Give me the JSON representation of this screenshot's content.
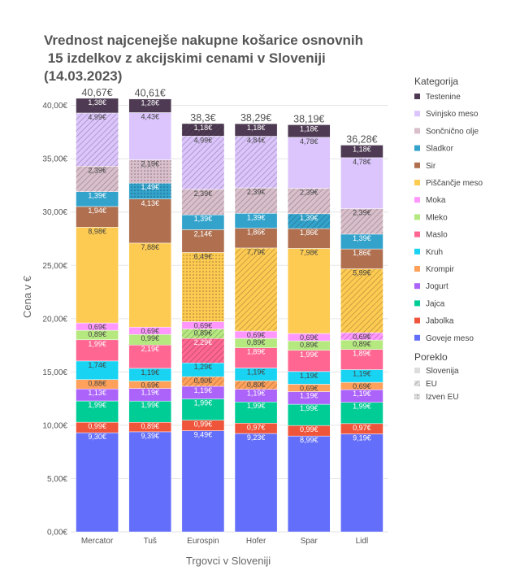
{
  "chart_data": {
    "type": "bar",
    "stacked": true,
    "title_lines": [
      "Vrednost najcenejše nakupne košarice osnovnih",
      " 15 izdelkov z akcijskimi cenami v Sloveniji",
      "(14.03.2023)"
    ],
    "xlabel": "Trgovci v Sloveniji",
    "ylabel": "Cena v €",
    "ylim": [
      0,
      41.5
    ],
    "yticks": [
      0,
      5,
      10,
      15,
      20,
      25,
      30,
      35,
      40
    ],
    "ytick_labels": [
      "0,00€",
      "5,00€",
      "10,00€",
      "15,00€",
      "20,00€",
      "25,00€",
      "30,00€",
      "35,00€",
      "40,00€"
    ],
    "grid": true,
    "categories": [
      "Mercator",
      "Tuš",
      "Eurospin",
      "Hofer",
      "Spar",
      "Lidl"
    ],
    "totals": [
      "40,67€",
      "40,61€",
      "38,3€",
      "38,29€",
      "38,19€",
      "36,28€"
    ],
    "series": [
      {
        "name": "Goveje meso",
        "color": "#636efa",
        "values": [
          9.3,
          9.39,
          9.49,
          9.23,
          8.99,
          9.19
        ],
        "labels": [
          "9,30€",
          "9,39€",
          "9,49€",
          "9,23€",
          "8,99€",
          "9,19€"
        ],
        "origin": [
          "slo",
          "slo",
          "slo",
          "slo",
          "slo",
          "slo"
        ]
      },
      {
        "name": "Jabolka",
        "color": "#ef553b",
        "values": [
          0.99,
          0.89,
          0.99,
          0.97,
          0.99,
          0.97
        ],
        "labels": [
          "0,99€",
          "0,89€",
          "0,99€",
          "0,97€",
          "0,99€",
          "0,97€"
        ],
        "origin": [
          "slo",
          "slo",
          "slo",
          "slo",
          "slo",
          "slo"
        ]
      },
      {
        "name": "Jajca",
        "color": "#00cc96",
        "values": [
          1.99,
          1.99,
          1.99,
          1.99,
          1.99,
          1.99
        ],
        "labels": [
          "1,99€",
          "1,99€",
          "1,99€",
          "1,99€",
          "1,99€",
          "1,99€"
        ],
        "origin": [
          "slo",
          "slo",
          "slo",
          "slo",
          "slo",
          "slo"
        ]
      },
      {
        "name": "Jogurt",
        "color": "#ab63fa",
        "values": [
          1.13,
          1.19,
          1.19,
          1.19,
          1.19,
          1.19
        ],
        "labels": [
          "1,13€",
          "1,19€",
          "1,19€",
          "1,19€",
          "1,19€",
          "1,19€"
        ],
        "origin": [
          "slo",
          "slo",
          "slo",
          "slo",
          "slo",
          "slo"
        ]
      },
      {
        "name": "Krompir",
        "color": "#ffa15a",
        "values": [
          0.88,
          0.69,
          0.9,
          0.8,
          0.69,
          0.69
        ],
        "labels": [
          "0,88€",
          "0,69€",
          "0,90€",
          "0,80€",
          "0,69€",
          "0,69€"
        ],
        "origin": [
          "slo",
          "slo",
          "eu",
          "eu",
          "slo",
          "slo"
        ]
      },
      {
        "name": "Kruh",
        "color": "#19d3f3",
        "values": [
          1.74,
          1.19,
          1.29,
          1.19,
          1.19,
          1.19
        ],
        "labels": [
          "1,74€",
          "1,19€",
          "1,29€",
          "1,19€",
          "1,19€",
          "1,19€"
        ],
        "origin": [
          "slo",
          "slo",
          "slo",
          "slo",
          "slo",
          "slo"
        ]
      },
      {
        "name": "Maslo",
        "color": "#ff6692",
        "values": [
          1.99,
          2.19,
          2.29,
          1.89,
          1.99,
          1.89
        ],
        "labels": [
          "1,99€",
          "2,19€",
          "2,29€",
          "1,89€",
          "1,99€",
          "1,89€"
        ],
        "origin": [
          "slo",
          "slo",
          "eu",
          "slo",
          "slo",
          "slo"
        ]
      },
      {
        "name": "Mleko",
        "color": "#b6e880",
        "values": [
          0.89,
          0.99,
          0.89,
          0.89,
          0.89,
          0.89
        ],
        "labels": [
          "0,89€",
          "0,99€",
          "0,89€",
          "0,89€",
          "0,89€",
          "0,89€"
        ],
        "origin": [
          "slo",
          "slo",
          "eu",
          "slo",
          "slo",
          "slo"
        ]
      },
      {
        "name": "Moka",
        "color": "#ff97ff",
        "values": [
          0.69,
          0.69,
          0.69,
          0.69,
          0.69,
          0.69
        ],
        "labels": [
          "0,69€",
          "0,69€",
          "0,69€",
          "0,69€",
          "0,69€",
          "0,69€"
        ],
        "origin": [
          "slo",
          "slo",
          "slo",
          "slo",
          "slo",
          "eu"
        ]
      },
      {
        "name": "Piščančje meso",
        "color": "#fecb52",
        "values": [
          8.98,
          7.88,
          6.49,
          7.79,
          7.98,
          5.99
        ],
        "labels": [
          "8,98€",
          "7,88€",
          "6,49€",
          "7,79€",
          "7,98€",
          "5,99€"
        ],
        "origin": [
          "slo",
          "slo",
          "izven",
          "eu",
          "slo",
          "eu"
        ]
      },
      {
        "name": "Sir",
        "color": "#b07050",
        "values": [
          1.94,
          4.13,
          2.14,
          1.86,
          1.86,
          1.86
        ],
        "labels": [
          "1,94€",
          "4,13€",
          "2,14€",
          "1,86€",
          "1,86€",
          "1,86€"
        ],
        "origin": [
          "slo",
          "slo",
          "slo",
          "slo",
          "slo",
          "slo"
        ]
      },
      {
        "name": "Sladkor",
        "color": "#33a3cc",
        "values": [
          1.39,
          1.49,
          1.39,
          1.39,
          1.39,
          1.39
        ],
        "labels": [
          "1,39€",
          "1,49€",
          "1,39€",
          "1,39€",
          "1,39€",
          "1,39€"
        ],
        "origin": [
          "slo",
          "izven",
          "slo",
          "slo",
          "eu",
          "slo"
        ]
      },
      {
        "name": "Sončnično olje",
        "color": "#d9bfcb",
        "values": [
          2.39,
          2.19,
          2.39,
          2.39,
          2.39,
          2.39
        ],
        "labels": [
          "2,39€",
          "2,19€",
          "2,39€",
          "2,39€",
          "2,39€",
          "2,39€"
        ],
        "origin": [
          "eu",
          "izven",
          "eu",
          "eu",
          "eu",
          "eu"
        ]
      },
      {
        "name": "Svinjsko meso",
        "color": "#dcc5fc",
        "values": [
          4.99,
          4.43,
          4.99,
          4.84,
          4.78,
          4.78
        ],
        "labels": [
          "4,99€",
          "4,43€",
          "4,99€",
          "4,84€",
          "4,78€",
          "4,78€"
        ],
        "origin": [
          "eu",
          "slo",
          "eu",
          "eu",
          "slo",
          "slo"
        ]
      },
      {
        "name": "Testenine",
        "color": "#4e3b53",
        "values": [
          1.38,
          1.28,
          1.18,
          1.18,
          1.18,
          1.18
        ],
        "labels": [
          "1,38€",
          "1,28€",
          "1,18€",
          "1,18€",
          "1,18€",
          "1,18€"
        ],
        "origin": [
          "slo",
          "slo",
          "eu",
          "slo",
          "slo",
          "slo"
        ]
      }
    ],
    "legend": {
      "placement": "right",
      "title": "Kategorija",
      "pattern_title": "Poreklo",
      "pattern_items": [
        {
          "key": "slo",
          "name": "Slovenija"
        },
        {
          "key": "eu",
          "name": "EU"
        },
        {
          "key": "izven",
          "name": "Izven EU"
        }
      ]
    }
  }
}
